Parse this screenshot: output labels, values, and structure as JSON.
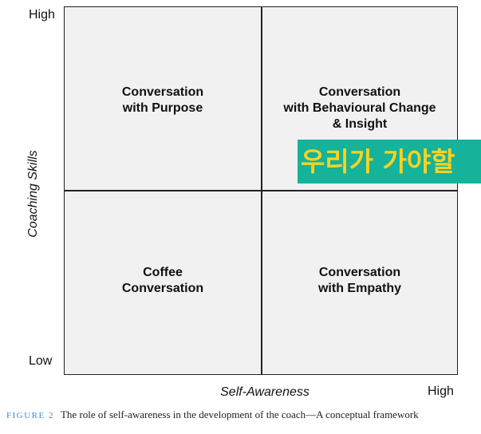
{
  "axes": {
    "y_title": "Coaching Skills",
    "y_high": "High",
    "y_low": "Low",
    "x_title": "Self-Awareness",
    "x_high": "High"
  },
  "quadrants": {
    "top_left": [
      "Conversation",
      "with Purpose"
    ],
    "top_right": [
      "Conversation",
      "with Behavioural Change",
      "& Insight"
    ],
    "bottom_left": [
      "Coffee",
      "Conversation"
    ],
    "bottom_right": [
      "Conversation",
      "with Empathy"
    ]
  },
  "overlay": {
    "text": "우리가 가야할",
    "background": "#14b39a",
    "color": "#ffd21f"
  },
  "caption": {
    "label": "FIGURE 2",
    "text": "The role of self-awareness in the development of the coach—A conceptual framework"
  }
}
